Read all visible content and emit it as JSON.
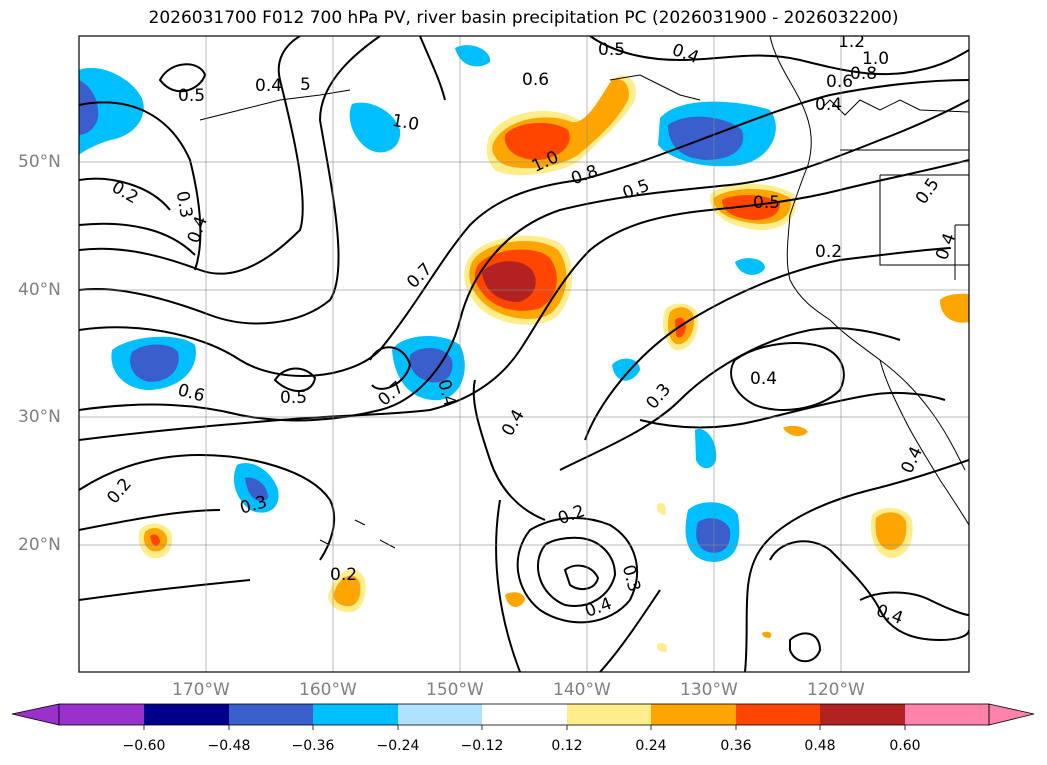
{
  "title": "2026031700 F012 700 hPa PV, river basin precipitation PC (2026031900 - 2026032200)",
  "map": {
    "projection": "PlateCarree",
    "lon_range": [
      -180,
      -110
    ],
    "lat_range": [
      10,
      60
    ],
    "lat_ticks": [
      "50°N",
      "40°N",
      "30°N",
      "20°N"
    ],
    "lon_ticks": [
      "170°W",
      "160°W",
      "150°W",
      "140°W",
      "130°W",
      "120°W"
    ],
    "grid": true,
    "contour_labels": [
      "0.5",
      "0.4",
      "5",
      "0.2",
      "0.3",
      "0.4",
      "1.0",
      "0.5",
      "0.4",
      "0.6",
      "1.2",
      "1.0",
      "0.8",
      "0.6",
      "0.4",
      "1.0",
      "0.8",
      "0.5",
      "0.5",
      "0.5",
      "0.2",
      "0.4",
      "0.7",
      "0.7",
      "0.4",
      "0.6",
      "0.5",
      "0.4",
      "0.3",
      "0.4",
      "0.4",
      "0.3",
      "0.2",
      "0.2",
      "0.3",
      "0.4",
      "0.2",
      "0.4"
    ]
  },
  "colorbar": {
    "ticks": [
      "−0.60",
      "−0.48",
      "−0.36",
      "−0.24",
      "−0.12",
      "0.12",
      "0.24",
      "0.36",
      "0.48",
      "0.60"
    ],
    "colors": [
      "#9932CC",
      "#00008B",
      "#3A5FCD",
      "#00BFFF",
      "#B0E2FF",
      "#FFFFFF",
      "#FFEC8B",
      "#FFA500",
      "#FF4500",
      "#B22222",
      "#FF82AB"
    ]
  }
}
